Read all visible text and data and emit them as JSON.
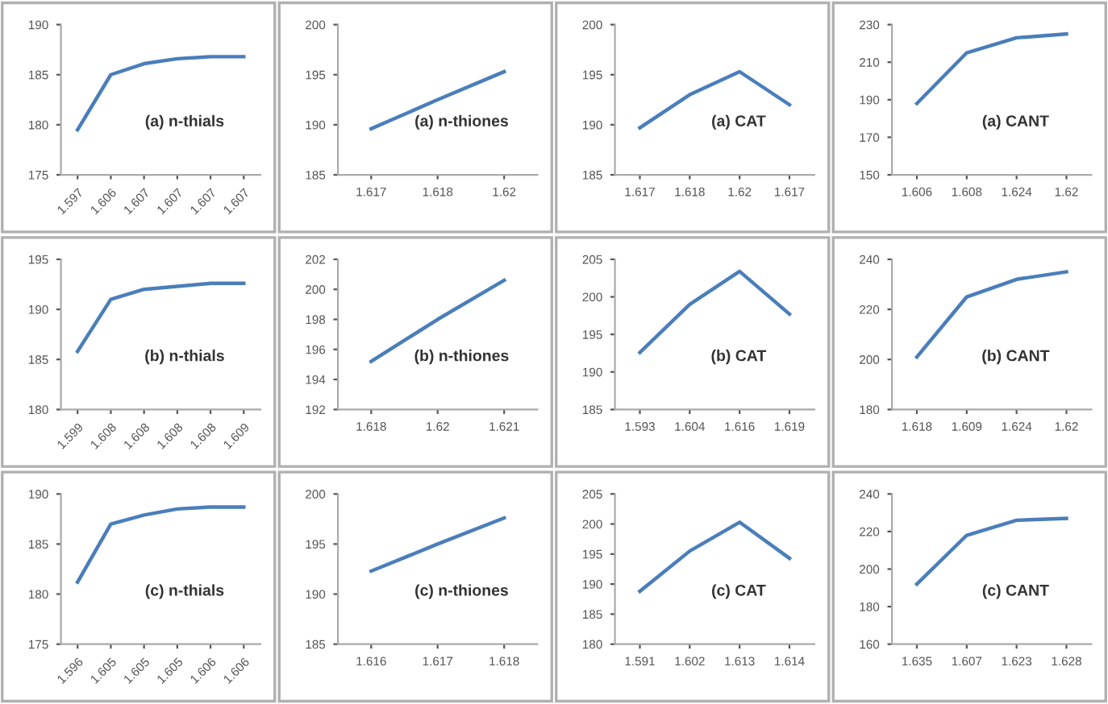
{
  "chart_data": [
    {
      "type": "line",
      "categories": [
        "1.597",
        "1.606",
        "1.607",
        "1.607",
        "1.607",
        "1.607"
      ],
      "values": [
        179.5,
        185.0,
        186.1,
        186.6,
        186.8,
        186.8
      ],
      "color": "#4a7ebb",
      "ylim": [
        175,
        190
      ],
      "yticks": [
        175,
        180,
        185,
        190
      ],
      "annotations": [
        "(a) n-thials"
      ]
    },
    {
      "type": "line",
      "categories": [
        "1.617",
        "1.618",
        "1.62"
      ],
      "values": [
        189.6,
        192.5,
        195.3
      ],
      "color": "#4a7ebb",
      "ylim": [
        185,
        200
      ],
      "yticks": [
        185,
        190,
        195,
        200
      ],
      "annotations": [
        "(a) n-thiones"
      ]
    },
    {
      "type": "line",
      "categories": [
        "1.617",
        "1.618",
        "1.62",
        "1.617"
      ],
      "values": [
        189.7,
        193.0,
        195.3,
        192.0
      ],
      "color": "#4a7ebb",
      "ylim": [
        185,
        200
      ],
      "yticks": [
        185,
        190,
        195,
        200
      ],
      "annotations": [
        "(a) CAT"
      ]
    },
    {
      "type": "line",
      "categories": [
        "1.606",
        "1.608",
        "1.624",
        "1.62"
      ],
      "values": [
        188,
        215,
        223,
        225
      ],
      "color": "#4a7ebb",
      "ylim": [
        150,
        230
      ],
      "yticks": [
        150,
        170,
        190,
        210,
        230
      ],
      "annotations": [
        "(a) CANT"
      ]
    },
    {
      "type": "line",
      "categories": [
        "1.599",
        "1.608",
        "1.608",
        "1.608",
        "1.608",
        "1.609"
      ],
      "values": [
        185.8,
        191.0,
        192.0,
        192.3,
        192.6,
        192.6
      ],
      "color": "#4a7ebb",
      "ylim": [
        180,
        195
      ],
      "yticks": [
        180,
        185,
        190,
        195
      ],
      "annotations": [
        "(b) n-thials"
      ]
    },
    {
      "type": "line",
      "categories": [
        "1.618",
        "1.62",
        "1.621"
      ],
      "values": [
        195.2,
        198.0,
        200.6
      ],
      "color": "#4a7ebb",
      "ylim": [
        192,
        202
      ],
      "yticks": [
        192,
        194,
        196,
        198,
        200,
        202
      ],
      "annotations": [
        "(b) n-thiones"
      ]
    },
    {
      "type": "line",
      "categories": [
        "1.593",
        "1.604",
        "1.616",
        "1.619"
      ],
      "values": [
        192.6,
        199.0,
        203.4,
        197.7
      ],
      "color": "#4a7ebb",
      "ylim": [
        185,
        205
      ],
      "yticks": [
        185,
        190,
        195,
        200,
        205
      ],
      "annotations": [
        "(b) CAT"
      ]
    },
    {
      "type": "line",
      "categories": [
        "1.618",
        "1.609",
        "1.624",
        "1.62"
      ],
      "values": [
        201,
        225,
        232,
        235
      ],
      "color": "#4a7ebb",
      "ylim": [
        180,
        240
      ],
      "yticks": [
        180,
        200,
        220,
        240
      ],
      "annotations": [
        "(b) CANT"
      ]
    },
    {
      "type": "line",
      "categories": [
        "1.596",
        "1.605",
        "1.605",
        "1.605",
        "1.606",
        "1.606"
      ],
      "values": [
        181.2,
        187.0,
        187.9,
        188.5,
        188.7,
        188.7
      ],
      "color": "#4a7ebb",
      "ylim": [
        175,
        190
      ],
      "yticks": [
        175,
        180,
        185,
        190
      ],
      "annotations": [
        "(c) n-thials"
      ]
    },
    {
      "type": "line",
      "categories": [
        "1.616",
        "1.617",
        "1.618"
      ],
      "values": [
        192.3,
        195.0,
        197.6
      ],
      "color": "#4a7ebb",
      "ylim": [
        185,
        200
      ],
      "yticks": [
        185,
        190,
        195,
        200
      ],
      "annotations": [
        "(c) n-thiones"
      ]
    },
    {
      "type": "line",
      "categories": [
        "1.591",
        "1.602",
        "1.613",
        "1.614"
      ],
      "values": [
        188.8,
        195.5,
        200.3,
        194.3
      ],
      "color": "#4a7ebb",
      "ylim": [
        180,
        205
      ],
      "yticks": [
        180,
        185,
        190,
        195,
        200,
        205
      ],
      "annotations": [
        "(c) CAT"
      ]
    },
    {
      "type": "line",
      "categories": [
        "1.635",
        "1.607",
        "1.623",
        "1.628"
      ],
      "values": [
        192,
        218,
        226,
        227
      ],
      "color": "#4a7ebb",
      "ylim": [
        160,
        240
      ],
      "yticks": [
        160,
        180,
        200,
        220,
        240
      ],
      "annotations": [
        "(c) CANT"
      ]
    }
  ]
}
